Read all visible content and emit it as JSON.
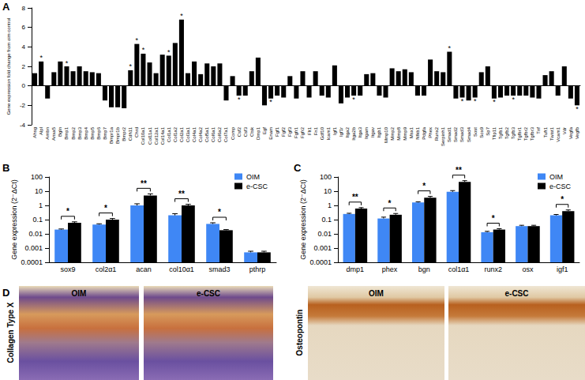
{
  "chart_data": [
    {
      "panel": "A",
      "type": "bar",
      "y_label": "Gene expression fold change from oim control",
      "categories": [
        "Ahsg",
        "Alpl",
        "Ambn",
        "Anxa5",
        "Bgln",
        "Bmp1",
        "Bmp2",
        "Bmp3",
        "Bmp4",
        "Bmp5",
        "Bmp6",
        "Bmp7",
        "Bmpr1a",
        "Bmpr1b",
        "Bmpr2",
        "Cdh11",
        "Chrd",
        "Col10a1",
        "Col11a1",
        "Col12a1",
        "Col14a1",
        "Col1a1",
        "Col1a2",
        "Col2a1",
        "Col3a1",
        "Col4a1",
        "Col4a2",
        "Col5a1",
        "Col6a1",
        "Col6a2",
        "Col7a1",
        "Comp",
        "Csf2",
        "Csf3",
        "Ctsk",
        "Dmp1",
        "Egf",
        "Enam",
        "Fgf1",
        "Fgf2",
        "Fgf3",
        "Fgfr1",
        "Fgfr2",
        "Flt1",
        "Fn1",
        "Gdf10",
        "Icam1",
        "Igf1",
        "Igf1r",
        "Itga2",
        "Itga2b",
        "Itga3",
        "Itgam",
        "Itgav",
        "Itgb1",
        "Mmp10",
        "Mmp2",
        "Mmp8",
        "Mmp9",
        "Msx1",
        "Nfkb1",
        "Pdgfa",
        "Phex",
        "Runx2",
        "Serpinh1",
        "Smad1",
        "Smad2",
        "Smad3",
        "Smad4",
        "Sost",
        "Sox9",
        "Sp7",
        "Tfip11",
        "Tgfb1",
        "Tgfb2",
        "Tgfb3",
        "Tgfbr1",
        "Tgfbr2",
        "Tgfbr3",
        "Tnf",
        "Tuft1",
        "Twist1",
        "Vcam1",
        "Vdr",
        "Vegfa",
        "Vegfb"
      ],
      "values": [
        1.3,
        2.5,
        -1.3,
        1.4,
        2.5,
        2.0,
        1.5,
        2.0,
        1.5,
        1.4,
        1.3,
        -1.5,
        -2.2,
        -2.2,
        -2.3,
        1.6,
        4.3,
        3.3,
        2.4,
        1.3,
        3.2,
        3.1,
        4.4,
        6.8,
        1.3,
        2.5,
        1.2,
        2.3,
        2.0,
        2.3,
        -1.5,
        1.0,
        -1.0,
        -1.0,
        1.5,
        2.9,
        -2.0,
        -1.3,
        -1.0,
        -1.2,
        1.0,
        -1.3,
        1.5,
        -1.2,
        1.5,
        -1.0,
        -1.2,
        2.1,
        -1.8,
        -1.2,
        -1.0,
        -1.0,
        1.2,
        1.3,
        -1.0,
        -1.2,
        1.8,
        1.5,
        1.7,
        1.4,
        -1.0,
        -1.0,
        2.7,
        1.5,
        1.4,
        3.5,
        -1.3,
        -1.2,
        -1.5,
        -1.2,
        1.4,
        2.0,
        -1.3,
        -1.2,
        -1.0,
        -1.0,
        -1.0,
        -1.0,
        -1.2,
        -1.3,
        1.1,
        1.5,
        -1.0,
        2.0,
        -1.3,
        -2.0
      ],
      "significance": [
        null,
        "*",
        null,
        null,
        null,
        "*",
        null,
        null,
        null,
        null,
        null,
        null,
        null,
        null,
        null,
        "*",
        "*",
        "*",
        null,
        null,
        null,
        "*",
        null,
        "*",
        null,
        null,
        null,
        null,
        null,
        null,
        null,
        null,
        "*",
        null,
        null,
        null,
        null,
        "*",
        null,
        null,
        null,
        null,
        null,
        null,
        null,
        null,
        null,
        null,
        null,
        null,
        "*",
        null,
        null,
        null,
        null,
        null,
        null,
        null,
        null,
        null,
        null,
        null,
        null,
        null,
        null,
        "*",
        null,
        "*",
        null,
        "*",
        null,
        null,
        "*",
        null,
        null,
        "*",
        null,
        null,
        null,
        null,
        null,
        null,
        null,
        null,
        null,
        "*"
      ],
      "color": "#000000",
      "ylim": [
        -4,
        8
      ],
      "yticks": [
        -4,
        -2,
        0,
        2,
        4,
        6,
        8
      ],
      "grid": false
    },
    {
      "panel": "B",
      "type": "bar",
      "y_label": "Gene expression (2⁻ΔCt)",
      "log": "y",
      "legend": "upper right",
      "grid": false,
      "categories": [
        "sox9",
        "col2α1",
        "acan",
        "col10α1",
        "smad3",
        "pthrp"
      ],
      "series": [
        {
          "name": "OIM",
          "color": "#3f87f5",
          "values": [
            0.02,
            0.045,
            1.0,
            0.2,
            0.05,
            0.0005
          ],
          "errors": [
            0.002,
            0.006,
            0.3,
            0.06,
            0.01,
            0.0001
          ]
        },
        {
          "name": "e-CSC",
          "color": "#000000",
          "values": [
            0.06,
            0.1,
            5.0,
            1.0,
            0.018,
            0.0005
          ],
          "errors": [
            0.01,
            0.02,
            1.5,
            0.2,
            0.002,
            0.0001
          ]
        }
      ],
      "significance": [
        "*",
        "*",
        "**",
        "**",
        "*",
        null
      ],
      "ylim": [
        0.0001,
        100
      ],
      "yticks": [
        0.0001,
        0.001,
        0.01,
        0.1,
        1,
        10,
        100
      ]
    },
    {
      "panel": "C",
      "type": "bar",
      "y_label": "Gene expression (2⁻ΔCt)",
      "log": "y",
      "legend": "upper right",
      "grid": false,
      "categories": [
        "dmp1",
        "phex",
        "bgn",
        "col1α1",
        "runx2",
        "osx",
        "igf1"
      ],
      "series": [
        {
          "name": "OIM",
          "color": "#3f87f5",
          "values": [
            0.25,
            0.12,
            1.6,
            9,
            0.013,
            0.035,
            0.2
          ],
          "errors": [
            0.03,
            0.03,
            0.2,
            2,
            0.002,
            0.005,
            0.03
          ]
        },
        {
          "name": "e-CSC",
          "color": "#000000",
          "values": [
            0.6,
            0.22,
            3.5,
            45,
            0.02,
            0.035,
            0.4
          ],
          "errors": [
            0.1,
            0.05,
            0.8,
            10,
            0.003,
            0.005,
            0.08
          ]
        }
      ],
      "significance": [
        "**",
        "*",
        "*",
        "**",
        "*",
        null,
        "*"
      ],
      "ylim": [
        0.0001,
        100
      ],
      "yticks": [
        0.0001,
        0.001,
        0.01,
        0.1,
        1,
        10,
        100
      ]
    }
  ],
  "image_panel": {
    "panel": "D",
    "images": [
      {
        "stain": "Collagen Type X",
        "groups": [
          "OIM",
          "e-CSC"
        ]
      },
      {
        "stain": "Osteopontin",
        "groups": [
          "OIM",
          "e-CSC"
        ]
      }
    ]
  }
}
